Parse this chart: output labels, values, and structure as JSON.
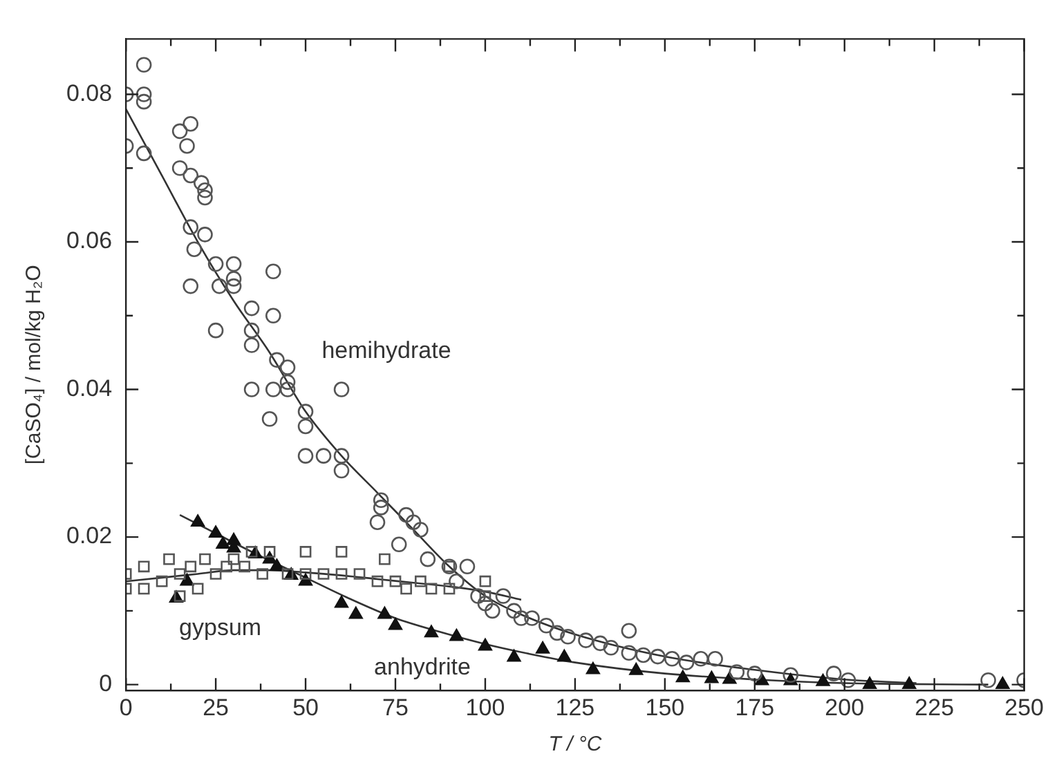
{
  "chart_data": {
    "type": "scatter",
    "xlabel": "T / °C",
    "ylabel": "[CaSO₄] / mol/kg H₂O",
    "xlim": [
      0,
      250
    ],
    "ylim": [
      -0.0008,
      0.0875
    ],
    "xticks": [
      0,
      {
        "value": 12.5,
        "label": null
      },
      25,
      {
        "value": 37.5,
        "label": null
      },
      50,
      {
        "value": 62.5,
        "label": null
      },
      75,
      {
        "value": 87.5,
        "label": null
      },
      100,
      {
        "value": 112.5,
        "label": null
      },
      125,
      {
        "value": 137.5,
        "label": null
      },
      150,
      {
        "value": 162.5,
        "label": null
      },
      175,
      {
        "value": 187.5,
        "label": null
      },
      200,
      {
        "value": 212.5,
        "label": null
      },
      225,
      {
        "value": 237.5,
        "label": null
      },
      250
    ],
    "yticks": [
      0,
      {
        "value": 0.01,
        "label": null
      },
      0.02,
      {
        "value": 0.03,
        "label": null
      },
      0.04,
      {
        "value": 0.05,
        "label": null
      },
      0.06,
      {
        "value": 0.07,
        "label": null
      },
      0.08
    ],
    "grid": false,
    "legend": false,
    "series": [
      {
        "name": "hemihydrate",
        "marker": "circle",
        "color": "#555555",
        "x": [
          0,
          0,
          5,
          5,
          5,
          5,
          15,
          18,
          17,
          15,
          18,
          21,
          22,
          22,
          18,
          22,
          19,
          18,
          25,
          26,
          30,
          30,
          30,
          25,
          35,
          41,
          35,
          41,
          35,
          42,
          45,
          41,
          35,
          45,
          45,
          60,
          40,
          50,
          50,
          50,
          55,
          60,
          60,
          71,
          71,
          70,
          78,
          80,
          76,
          82,
          84,
          90,
          92,
          95,
          98,
          100,
          102,
          105,
          108,
          110,
          113,
          117,
          120,
          123,
          128,
          132,
          135,
          140,
          140,
          144,
          148,
          152,
          156,
          160,
          164,
          170,
          175,
          185,
          197,
          201,
          240,
          250
        ],
        "values": [
          0.08,
          0.073,
          0.084,
          0.08,
          0.079,
          0.072,
          0.075,
          0.076,
          0.073,
          0.07,
          0.069,
          0.068,
          0.067,
          0.066,
          0.062,
          0.061,
          0.059,
          0.054,
          0.057,
          0.054,
          0.057,
          0.055,
          0.054,
          0.048,
          0.051,
          0.056,
          0.048,
          0.05,
          0.046,
          0.044,
          0.043,
          0.04,
          0.04,
          0.041,
          0.04,
          0.04,
          0.036,
          0.037,
          0.035,
          0.031,
          0.031,
          0.031,
          0.029,
          0.025,
          0.024,
          0.022,
          0.023,
          0.022,
          0.019,
          0.021,
          0.017,
          0.016,
          0.014,
          0.016,
          0.012,
          0.011,
          0.01,
          0.012,
          0.01,
          0.009,
          0.009,
          0.008,
          0.007,
          0.0065,
          0.006,
          0.0056,
          0.005,
          0.0073,
          0.0043,
          0.004,
          0.0038,
          0.0035,
          0.003,
          0.0035,
          0.0035,
          0.0017,
          0.0015,
          0.0013,
          0.0015,
          0.0006,
          0.0006,
          0.0006
        ]
      },
      {
        "name": "gypsum",
        "marker": "square",
        "color": "#555555",
        "x": [
          0,
          0,
          5,
          5,
          10,
          12,
          15,
          15,
          18,
          20,
          22,
          25,
          28,
          30,
          33,
          35,
          38,
          40,
          45,
          50,
          50,
          55,
          60,
          60,
          65,
          70,
          72,
          75,
          78,
          82,
          85,
          90,
          90,
          100,
          100
        ],
        "values": [
          0.015,
          0.013,
          0.016,
          0.013,
          0.014,
          0.017,
          0.015,
          0.012,
          0.016,
          0.013,
          0.017,
          0.015,
          0.016,
          0.017,
          0.016,
          0.018,
          0.015,
          0.018,
          0.015,
          0.018,
          0.015,
          0.015,
          0.018,
          0.015,
          0.015,
          0.014,
          0.017,
          0.014,
          0.013,
          0.014,
          0.013,
          0.013,
          0.016,
          0.014,
          0.012
        ]
      },
      {
        "name": "anhydrite",
        "marker": "triangle",
        "color": "#111111",
        "x": [
          14,
          17,
          20,
          25,
          27,
          30,
          30,
          36,
          40,
          42,
          46,
          50,
          60,
          64,
          72,
          75,
          85,
          92,
          100,
          108,
          116,
          122,
          130,
          142,
          155,
          163,
          168,
          177,
          185,
          194,
          207,
          218,
          244
        ],
        "values": [
          0.0117,
          0.014,
          0.022,
          0.0205,
          0.019,
          0.0195,
          0.0185,
          0.0177,
          0.017,
          0.016,
          0.0148,
          0.014,
          0.011,
          0.0095,
          0.0095,
          0.008,
          0.007,
          0.0065,
          0.0052,
          0.0037,
          0.0048,
          0.0037,
          0.002,
          0.0019,
          0.0009,
          0.0008,
          0.0007,
          0.0005,
          0.0005,
          0.0004,
          0,
          0,
          0
        ]
      },
      {
        "type": "line",
        "marker": "none",
        "line_style": "solid",
        "color": "#333333",
        "x": [
          0,
          10,
          20,
          30,
          40,
          50,
          60,
          70,
          80,
          90,
          100,
          110,
          125,
          150,
          175,
          200,
          220
        ],
        "values": [
          0.078,
          0.069,
          0.06,
          0.052,
          0.045,
          0.037,
          0.031,
          0.026,
          0.021,
          0.016,
          0.012,
          0.0095,
          0.0068,
          0.0038,
          0.002,
          0.0007,
          0.0002
        ]
      },
      {
        "type": "line",
        "marker": "none",
        "line_style": "solid",
        "color": "#333333",
        "x": [
          0,
          10,
          20,
          30,
          40,
          50,
          60,
          70,
          80,
          90,
          100,
          110
        ],
        "values": [
          0.014,
          0.0145,
          0.015,
          0.0155,
          0.0155,
          0.0152,
          0.0148,
          0.0143,
          0.0138,
          0.0133,
          0.0126,
          0.0115
        ]
      },
      {
        "type": "line",
        "marker": "none",
        "line_style": "solid",
        "color": "#333333",
        "x": [
          15,
          25,
          35,
          50,
          62,
          75,
          87,
          100,
          112,
          125,
          150,
          175,
          200,
          240
        ],
        "values": [
          0.023,
          0.0205,
          0.018,
          0.0145,
          0.0117,
          0.009,
          0.0072,
          0.0055,
          0.0042,
          0.003,
          0.0015,
          0.0007,
          0.0002,
          0
        ]
      }
    ]
  }
}
